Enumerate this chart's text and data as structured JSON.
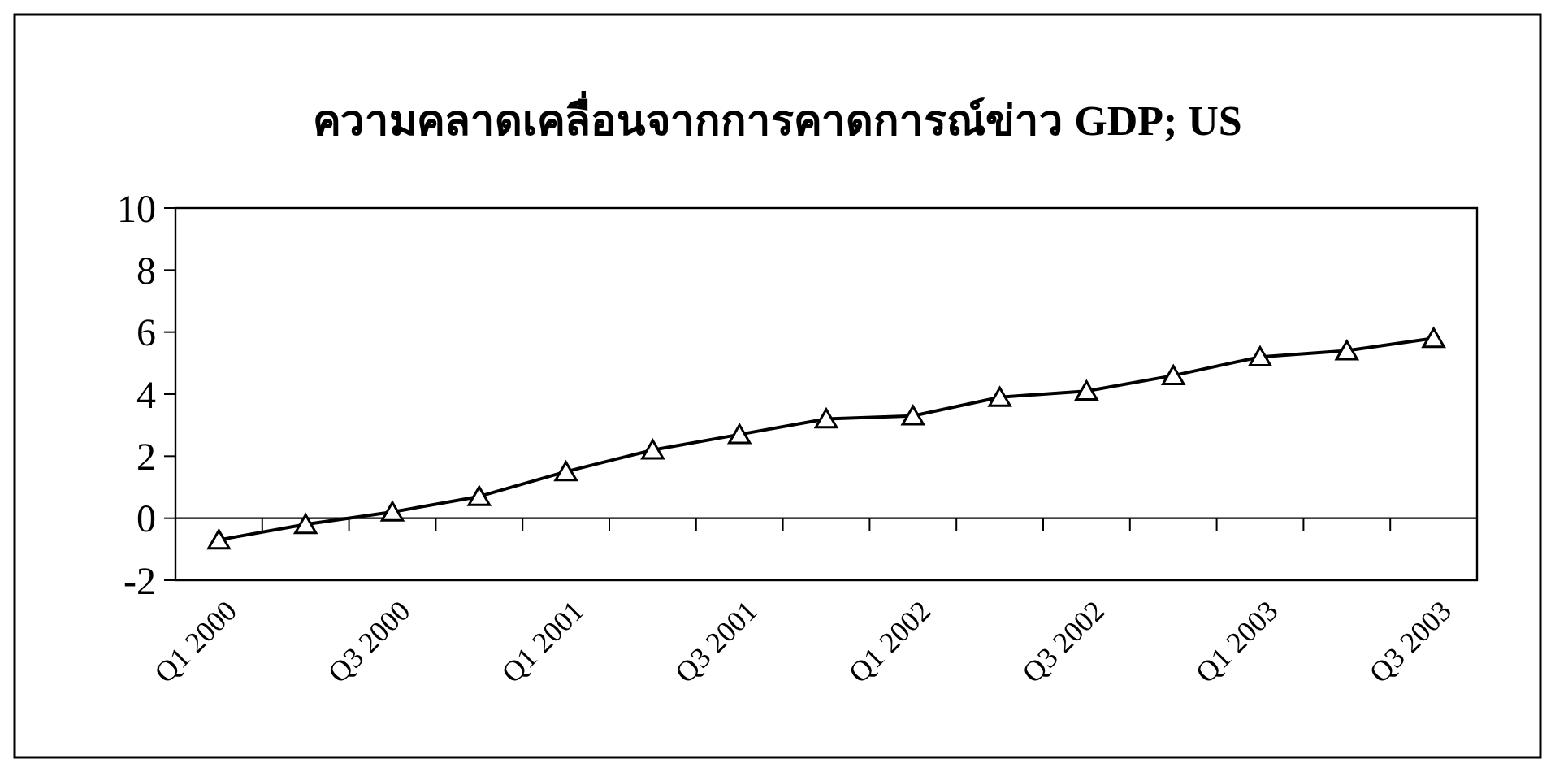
{
  "chart_data": {
    "type": "line",
    "title": "ความคลาดเคลื่อนจากการคาดการณ์ข่าว GDP; US",
    "categories": [
      "Q1 2000",
      null,
      "Q3 2000",
      null,
      "Q1 2001",
      null,
      "Q3 2001",
      null,
      "Q1 2002",
      null,
      "Q3 2002",
      null,
      "Q1 2003",
      null,
      "Q3 2003"
    ],
    "series": [
      {
        "color": "#000000",
        "values": [
          -0.7,
          -0.2,
          0.2,
          0.7,
          1.5,
          2.2,
          2.7,
          3.2,
          3.3,
          3.9,
          4.1,
          4.6,
          5.2,
          5.4,
          5.8
        ]
      }
    ],
    "ylim": [
      -2,
      10
    ],
    "yticks": [
      -2,
      0,
      2,
      4,
      6,
      8,
      10
    ],
    "marker": "triangle",
    "line_style": "solid"
  }
}
